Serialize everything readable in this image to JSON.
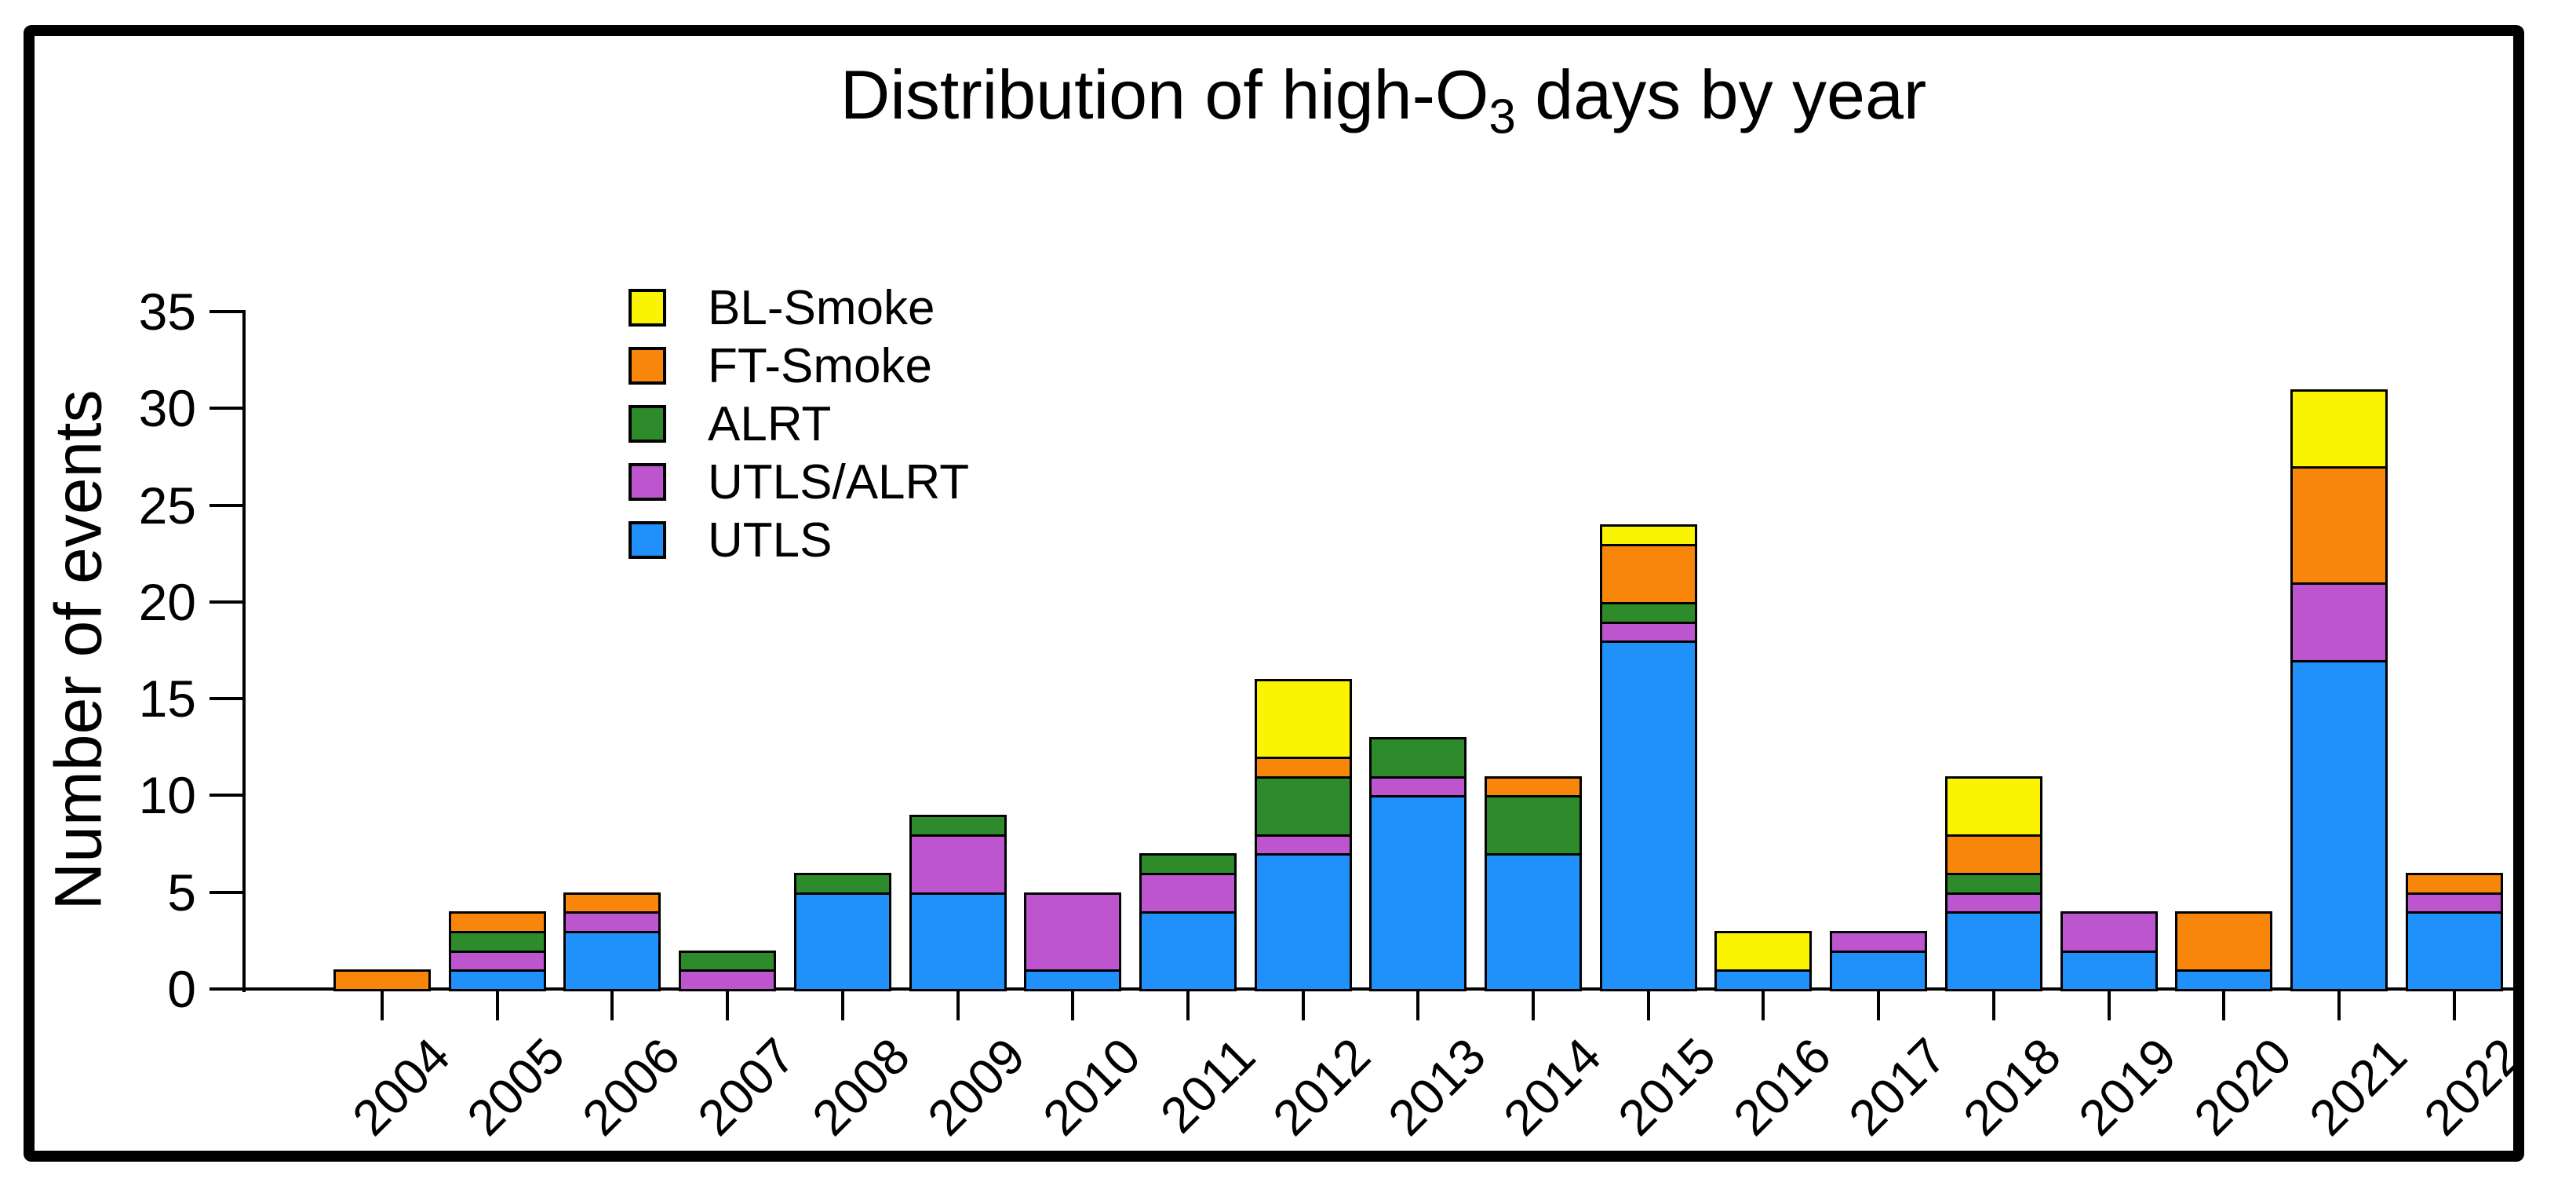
{
  "title": {
    "prefix": "Distribution of high-O",
    "subscript": "3",
    "suffix": " days by year"
  },
  "y_axis": {
    "label": "Number of events",
    "tick_values": [
      0,
      5,
      10,
      15,
      20,
      25,
      30,
      35
    ],
    "range": [
      0,
      35
    ]
  },
  "x_axis": {
    "tick_labels": [
      "2004",
      "2005",
      "2006",
      "2007",
      "2008",
      "2009",
      "2010",
      "2011",
      "2012",
      "2013",
      "2014",
      "2015",
      "2016",
      "2017",
      "2018",
      "2019",
      "2020",
      "2021",
      "2022"
    ]
  },
  "legend": {
    "position": "upper-left-inside",
    "entries": [
      {
        "label": "BL-Smoke",
        "color": "#FAF402"
      },
      {
        "label": "FT-Smoke",
        "color": "#F8860B"
      },
      {
        "label": "ALRT",
        "color": "#2E8B2B"
      },
      {
        "label": "UTLS/ALRT",
        "color": "#BC55CE"
      },
      {
        "label": "UTLS",
        "color": "#2090FA"
      }
    ]
  },
  "colors": {
    "BL-Smoke": "#FAF402",
    "FT-Smoke": "#F8860B",
    "ALRT": "#2E8B2B",
    "UTLS/ALRT": "#BC55CE",
    "UTLS": "#2090FA",
    "axis": "#000000",
    "frame_border": "#000000",
    "background": "#ffffff"
  },
  "chart_data": {
    "type": "bar",
    "stacked": true,
    "title": "Distribution of high-O3 days by year",
    "xlabel": "",
    "ylabel": "Number of events",
    "ylim": [
      0,
      35
    ],
    "grid": false,
    "categories": [
      2004,
      2005,
      2006,
      2007,
      2008,
      2009,
      2010,
      2011,
      2012,
      2013,
      2014,
      2015,
      2016,
      2017,
      2018,
      2019,
      2020,
      2021,
      2022
    ],
    "stack_order_bottom_to_top": [
      "UTLS",
      "UTLS/ALRT",
      "ALRT",
      "FT-Smoke",
      "BL-Smoke"
    ],
    "series": [
      {
        "name": "UTLS",
        "color": "#2090FA",
        "values": [
          0,
          1,
          3,
          0,
          5,
          5,
          1,
          4,
          7,
          10,
          7,
          18,
          1,
          2,
          4,
          2,
          1,
          17,
          4
        ]
      },
      {
        "name": "UTLS/ALRT",
        "color": "#BC55CE",
        "values": [
          0,
          1,
          1,
          1,
          0,
          3,
          4,
          2,
          1,
          1,
          0,
          1,
          0,
          1,
          1,
          2,
          0,
          4,
          1
        ]
      },
      {
        "name": "ALRT",
        "color": "#2E8B2B",
        "values": [
          0,
          1,
          0,
          1,
          1,
          1,
          0,
          1,
          3,
          2,
          3,
          1,
          0,
          0,
          1,
          0,
          0,
          0,
          0
        ]
      },
      {
        "name": "FT-Smoke",
        "color": "#F8860B",
        "values": [
          1,
          1,
          1,
          0,
          0,
          0,
          0,
          0,
          1,
          0,
          1,
          3,
          0,
          0,
          2,
          0,
          3,
          6,
          1
        ]
      },
      {
        "name": "BL-Smoke",
        "color": "#FAF402",
        "values": [
          0,
          0,
          0,
          0,
          0,
          0,
          0,
          0,
          4,
          0,
          0,
          1,
          2,
          0,
          3,
          0,
          0,
          4,
          0
        ]
      }
    ],
    "totals": [
      1,
      4,
      5,
      2,
      6,
      9,
      5,
      7,
      16,
      13,
      11,
      24,
      3,
      3,
      11,
      4,
      4,
      31,
      6
    ]
  },
  "layout_note_values_are_visual_only": ""
}
